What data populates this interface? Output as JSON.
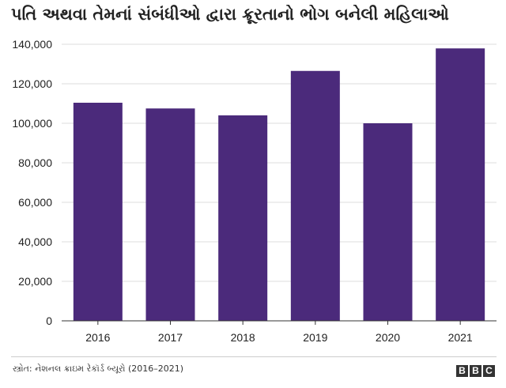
{
  "chart_data": {
    "type": "bar",
    "title": "પતિ અથવા તેમનાં સંબંધીઓ દ્વારા ક્રૂરતાનો ભોગ બનેલી મહિલાઓ",
    "categories": [
      "2016",
      "2017",
      "2018",
      "2019",
      "2020",
      "2021"
    ],
    "values": [
      110400,
      107500,
      104000,
      126500,
      100000,
      137900
    ],
    "ylim": [
      0,
      140000
    ],
    "yticks": [
      0,
      20000,
      40000,
      60000,
      80000,
      100000,
      120000,
      140000
    ],
    "ytick_labels": [
      "0",
      "20,000",
      "40,000",
      "60,000",
      "80,000",
      "100,000",
      "120,000",
      "140,000"
    ],
    "grid": true,
    "bar_color": "#4b2a7b",
    "grid_color": "#dddddd"
  },
  "footer": {
    "source": "સ્ત્રોત: નેશનલ ક્રાઇમ રેકૉર્ડ બ્યૂરો (2016–2021)",
    "logo_letters": [
      "B",
      "B",
      "C"
    ]
  }
}
